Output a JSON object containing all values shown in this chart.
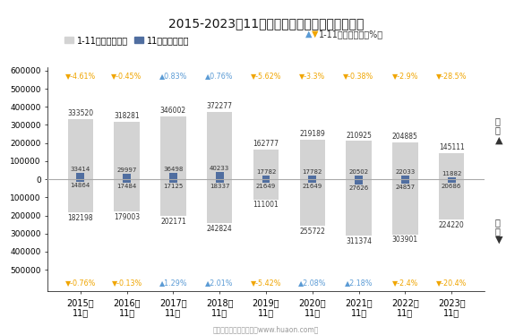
{
  "title": "2015-2023年11月漕河泾综合保税区进、出口额",
  "years": [
    "2015年\n11月",
    "2016年\n11月",
    "2017年\n11月",
    "2018年\n11月",
    "2019年\n11月",
    "2020年\n11月",
    "2021年\n11月",
    "2022年\n11月",
    "2023年\n11月"
  ],
  "export_annual": [
    333520,
    318281,
    346002,
    372277,
    162777,
    219189,
    210925,
    204885,
    145111
  ],
  "export_monthly": [
    33414,
    29997,
    36498,
    40233,
    17782,
    17782,
    20502,
    22033,
    11882
  ],
  "import_annual": [
    -182198,
    -179003,
    -202171,
    -242824,
    -111001,
    -255722,
    -311374,
    -303901,
    -224220
  ],
  "import_monthly": [
    -14864,
    -17484,
    -17125,
    -18337,
    -21649,
    -21649,
    -27626,
    -24857,
    -20686
  ],
  "export_annual_labels": [
    333520,
    318281,
    346002,
    372277,
    162777,
    219189,
    210925,
    204885,
    145111
  ],
  "export_monthly_labels": [
    33414,
    29997,
    36498,
    40233,
    17782,
    17782,
    20502,
    22033,
    11882
  ],
  "import_annual_labels": [
    182198,
    179003,
    202171,
    242824,
    111001,
    255722,
    311374,
    303901,
    224220
  ],
  "import_monthly_labels": [
    14864,
    17484,
    17125,
    18337,
    21649,
    21649,
    27626,
    24857,
    20686
  ],
  "export_yoy_vals": [
    "-4.61%",
    "-0.45%",
    "0.83%",
    "0.76%",
    "-5.62%",
    "-3.3%",
    "-0.38%",
    "-2.9%",
    "-28.5%"
  ],
  "export_yoy_up": [
    false,
    false,
    true,
    true,
    false,
    false,
    false,
    false,
    false
  ],
  "import_yoy_vals": [
    "-0.76%",
    "-0.13%",
    "1.29%",
    "2.01%",
    "-5.42%",
    "2.08%",
    "2.18%",
    "-2.4%",
    "-20.4%"
  ],
  "import_yoy_up": [
    false,
    false,
    true,
    true,
    false,
    true,
    true,
    false,
    false
  ],
  "bar_color_annual": "#d3d3d3",
  "bar_color_monthly": "#506ea0",
  "yoy_color_up": "#5b9bd5",
  "yoy_color_down": "#f0a500",
  "bg_color": "#ffffff",
  "ylim": 620000,
  "legend_annual": "1-11月（万美元）",
  "legend_monthly": "11月（万美元）",
  "legend_yoy": "1-11月同比增速（%）",
  "right_export": "出\n口",
  "right_import": "进\n口",
  "source_text": "制图：华经产业研究院（www.huaon.com）",
  "yticks": [
    600000,
    500000,
    400000,
    300000,
    200000,
    100000,
    0,
    -100000,
    -200000,
    -300000,
    -400000,
    -500000
  ]
}
